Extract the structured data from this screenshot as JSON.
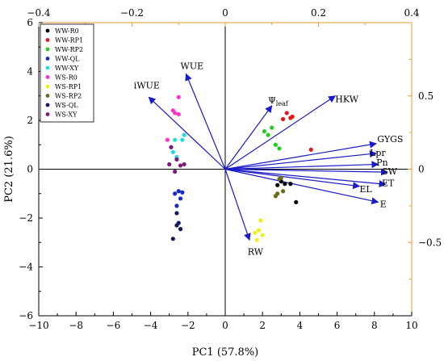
{
  "chart_data": {
    "type": "scatter",
    "title": "",
    "xlabel": "PC1 (57.8%)",
    "ylabel": "PC2 (21.6%)",
    "xlim": [
      -10,
      10
    ],
    "ylim": [
      -6,
      6
    ],
    "xticks": [
      -10,
      -8,
      -6,
      -4,
      -2,
      0,
      2,
      4,
      6,
      8,
      10
    ],
    "yticks": [
      -6,
      -4,
      -2,
      0,
      2,
      4,
      6
    ],
    "top_axis": {
      "range": [
        -0.4,
        0.4
      ],
      "ticks": [
        "-0.4",
        "-0.2",
        "0",
        "0.2",
        "0.4"
      ],
      "color": "#E89A2C"
    },
    "right_axis": {
      "range": [
        -1.0,
        1.0
      ],
      "ticks": [
        "0.5",
        "0",
        "-0.5"
      ],
      "color": "#E89A2C"
    },
    "grid": false,
    "legend_position": "top-left",
    "series": [
      {
        "name": "WW-R0",
        "color": "#000000",
        "points": [
          [
            3.2,
            -0.6
          ],
          [
            3.5,
            -0.6
          ],
          [
            3.0,
            -0.5
          ],
          [
            2.8,
            -0.65
          ],
          [
            3.8,
            -1.35
          ]
        ]
      },
      {
        "name": "WW-RP1",
        "color": "#E01A1A",
        "points": [
          [
            3.3,
            2.3
          ],
          [
            3.6,
            2.15
          ],
          [
            3.1,
            2.05
          ],
          [
            3.5,
            2.1
          ],
          [
            4.6,
            0.8
          ]
        ]
      },
      {
        "name": "WW-RP2",
        "color": "#22CC22",
        "points": [
          [
            2.1,
            1.55
          ],
          [
            2.5,
            1.7
          ],
          [
            2.3,
            1.4
          ],
          [
            2.7,
            1.0
          ],
          [
            2.9,
            0.85
          ]
        ]
      },
      {
        "name": "WW-QL",
        "color": "#1A2AC8",
        "points": [
          [
            -2.5,
            -0.9
          ],
          [
            -2.7,
            -1.0
          ],
          [
            -2.4,
            -1.2
          ],
          [
            -2.6,
            -1.5
          ],
          [
            -2.3,
            -0.95
          ]
        ]
      },
      {
        "name": "WW-XY",
        "color": "#22DDDD",
        "points": [
          [
            -2.2,
            1.4
          ],
          [
            -2.7,
            1.2
          ],
          [
            -2.3,
            1.2
          ],
          [
            -2.8,
            0.7
          ],
          [
            -2.6,
            0.5
          ]
        ]
      },
      {
        "name": "WS-R0",
        "color": "#FF33CC",
        "points": [
          [
            -2.5,
            2.95
          ],
          [
            -2.8,
            2.4
          ],
          [
            -2.7,
            2.3
          ],
          [
            -2.5,
            2.25
          ],
          [
            -3.1,
            1.2
          ]
        ]
      },
      {
        "name": "WS-RP1",
        "color": "#EEEE22",
        "points": [
          [
            1.9,
            -2.1
          ],
          [
            1.6,
            -2.6
          ],
          [
            2.0,
            -2.7
          ],
          [
            1.7,
            -2.9
          ],
          [
            1.8,
            -2.5
          ]
        ]
      },
      {
        "name": "WS-RP2",
        "color": "#6B6B1A",
        "points": [
          [
            2.9,
            -0.4
          ],
          [
            3.1,
            -0.9
          ],
          [
            2.8,
            -1.0
          ],
          [
            3.0,
            -0.35
          ],
          [
            2.7,
            -1.1
          ]
        ]
      },
      {
        "name": "WS-QL",
        "color": "#14185E",
        "points": [
          [
            -2.6,
            -1.8
          ],
          [
            -2.5,
            -2.2
          ],
          [
            -2.6,
            -2.3
          ],
          [
            -2.4,
            -2.45
          ],
          [
            -2.8,
            -2.85
          ]
        ]
      },
      {
        "name": "WS-XY",
        "color": "#7A1A7A",
        "points": [
          [
            -2.9,
            0.9
          ],
          [
            -2.6,
            0.4
          ],
          [
            -3.0,
            0.2
          ],
          [
            -2.4,
            0.15
          ],
          [
            -2.7,
            -0.1
          ],
          [
            -2.2,
            0.2
          ]
        ]
      }
    ],
    "loadings": {
      "color": "#1A1AC8",
      "vectors": [
        {
          "label": "iWUE",
          "end": [
            -4.1,
            2.95
          ],
          "label_at": [
            -4.9,
            3.3
          ]
        },
        {
          "label": "WUE",
          "end": [
            -2.1,
            3.9
          ],
          "label_at": [
            -2.4,
            4.1
          ]
        },
        {
          "label": "Ψ",
          "sub": "leaf",
          "end": [
            2.5,
            2.6
          ],
          "label_at": [
            2.3,
            2.7
          ]
        },
        {
          "label": "HKW",
          "end": [
            5.9,
            3.0
          ],
          "label_at": [
            5.9,
            2.75
          ]
        },
        {
          "label": "GYGS",
          "end": [
            8.1,
            1.05
          ],
          "label_at": [
            8.15,
            1.1
          ]
        },
        {
          "label": "Lpr",
          "end": [
            8.1,
            0.65
          ],
          "label_at": [
            7.75,
            0.55
          ]
        },
        {
          "label": "Pn",
          "end": [
            8.2,
            0.2
          ],
          "label_at": [
            8.1,
            0.15
          ]
        },
        {
          "label": "SW",
          "end": [
            8.7,
            -0.12
          ],
          "label_at": [
            8.4,
            -0.22
          ]
        },
        {
          "label": "ET",
          "end": [
            8.6,
            -0.62
          ],
          "label_at": [
            8.4,
            -0.7
          ]
        },
        {
          "label": "EL",
          "end": [
            7.2,
            -0.7
          ],
          "label_at": [
            7.2,
            -0.95
          ]
        },
        {
          "label": "E",
          "end": [
            8.2,
            -1.35
          ],
          "label_at": [
            8.3,
            -1.55
          ]
        },
        {
          "label": "RW",
          "end": [
            1.3,
            -2.9
          ],
          "label_at": [
            1.2,
            -3.5
          ]
        }
      ]
    }
  }
}
